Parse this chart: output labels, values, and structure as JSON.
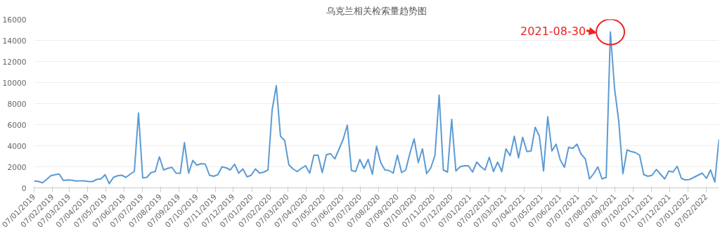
{
  "chart_data": {
    "type": "line",
    "title": "乌克兰相关检索量趋势图",
    "x": [
      "2019-01-07",
      "2019-01-14",
      "2019-01-21",
      "2019-01-28",
      "2019-02-04",
      "2019-02-11",
      "2019-02-18",
      "2019-02-25",
      "2019-03-04",
      "2019-03-11",
      "2019-03-18",
      "2019-03-25",
      "2019-04-01",
      "2019-04-08",
      "2019-04-15",
      "2019-04-22",
      "2019-04-29",
      "2019-05-06",
      "2019-05-13",
      "2019-05-20",
      "2019-05-27",
      "2019-06-03",
      "2019-06-10",
      "2019-06-17",
      "2019-06-24",
      "2019-07-01",
      "2019-07-08",
      "2019-07-15",
      "2019-07-22",
      "2019-07-29",
      "2019-08-05",
      "2019-08-12",
      "2019-08-19",
      "2019-08-26",
      "2019-09-02",
      "2019-09-09",
      "2019-09-16",
      "2019-09-23",
      "2019-09-30",
      "2019-10-07",
      "2019-10-14",
      "2019-10-21",
      "2019-10-28",
      "2019-11-04",
      "2019-11-11",
      "2019-11-18",
      "2019-11-25",
      "2019-12-02",
      "2019-12-09",
      "2019-12-16",
      "2019-12-23",
      "2019-12-30",
      "2020-01-06",
      "2020-01-13",
      "2020-01-20",
      "2020-01-27",
      "2020-02-03",
      "2020-02-10",
      "2020-02-17",
      "2020-02-24",
      "2020-03-02",
      "2020-03-09",
      "2020-03-16",
      "2020-03-23",
      "2020-03-30",
      "2020-04-06",
      "2020-04-13",
      "2020-04-20",
      "2020-04-27",
      "2020-05-04",
      "2020-05-11",
      "2020-05-18",
      "2020-05-25",
      "2020-06-01",
      "2020-06-08",
      "2020-06-15",
      "2020-06-22",
      "2020-06-29",
      "2020-07-06",
      "2020-07-13",
      "2020-07-20",
      "2020-07-27",
      "2020-08-03",
      "2020-08-10",
      "2020-08-17",
      "2020-08-24",
      "2020-08-31",
      "2020-09-07",
      "2020-09-14",
      "2020-09-21",
      "2020-09-28",
      "2020-10-05",
      "2020-10-12",
      "2020-10-19",
      "2020-10-26",
      "2020-11-02",
      "2020-11-09",
      "2020-11-16",
      "2020-11-23",
      "2020-11-30",
      "2020-12-07",
      "2020-12-14",
      "2020-12-21",
      "2020-12-28",
      "2021-01-04",
      "2021-01-11",
      "2021-01-18",
      "2021-01-25",
      "2021-02-01",
      "2021-02-08",
      "2021-02-15",
      "2021-02-22",
      "2021-03-01",
      "2021-03-08",
      "2021-03-15",
      "2021-03-22",
      "2021-03-29",
      "2021-04-05",
      "2021-04-12",
      "2021-04-19",
      "2021-04-26",
      "2021-05-03",
      "2021-05-10",
      "2021-05-17",
      "2021-05-24",
      "2021-05-31",
      "2021-06-07",
      "2021-06-14",
      "2021-06-21",
      "2021-06-28",
      "2021-07-05",
      "2021-07-12",
      "2021-07-19",
      "2021-07-26",
      "2021-08-02",
      "2021-08-09",
      "2021-08-16",
      "2021-08-23",
      "2021-08-30",
      "2021-09-06",
      "2021-09-13",
      "2021-09-20",
      "2021-09-27",
      "2021-10-04",
      "2021-10-11",
      "2021-10-18",
      "2021-10-25",
      "2021-11-01",
      "2021-11-08",
      "2021-11-15",
      "2021-11-22",
      "2021-11-29",
      "2021-12-06",
      "2021-12-13",
      "2021-12-20",
      "2021-12-27",
      "2022-01-03",
      "2022-01-10",
      "2022-01-17",
      "2022-01-24",
      "2022-01-31",
      "2022-02-07",
      "2022-02-14",
      "2022-02-21",
      "2022-02-28"
    ],
    "series": [
      {
        "color": "#5b9bd5",
        "values": [
          650,
          620,
          480,
          800,
          1150,
          1250,
          1320,
          700,
          750,
          730,
          650,
          660,
          660,
          600,
          600,
          800,
          850,
          1250,
          400,
          1000,
          1150,
          1200,
          1000,
          1300,
          1550,
          7100,
          950,
          1000,
          1450,
          1550,
          2950,
          1700,
          1850,
          1950,
          1400,
          1380,
          4300,
          1400,
          2600,
          2150,
          2300,
          2250,
          1200,
          1100,
          1250,
          2000,
          1900,
          1700,
          2250,
          1400,
          1800,
          1050,
          1200,
          1800,
          1400,
          1500,
          1700,
          7400,
          9700,
          4900,
          4500,
          2200,
          1800,
          1550,
          1850,
          2100,
          1400,
          3100,
          3100,
          1450,
          3150,
          3250,
          2750,
          3650,
          4600,
          5950,
          1650,
          1550,
          2700,
          1850,
          2700,
          1300,
          3950,
          2400,
          1700,
          1650,
          1400,
          3100,
          1450,
          1700,
          3300,
          4650,
          2400,
          3700,
          1350,
          1900,
          3100,
          8800,
          1700,
          1500,
          6500,
          1600,
          2000,
          2100,
          2100,
          1500,
          2450,
          2000,
          1700,
          2900,
          1550,
          2450,
          1550,
          3700,
          3050,
          4900,
          2850,
          4800,
          3450,
          3500,
          5750,
          4900,
          1600,
          6750,
          3500,
          4150,
          2650,
          1950,
          3850,
          3750,
          4150,
          3200,
          2750,
          850,
          1350,
          2000,
          850,
          1000,
          14800,
          9450,
          6350,
          1350,
          3600,
          3450,
          3350,
          3100,
          1250,
          1100,
          1200,
          1750,
          1300,
          850,
          1600,
          1500,
          2050,
          900,
          750,
          800,
          1000,
          1200,
          1400,
          900,
          1700,
          550,
          4600
        ]
      }
    ],
    "xlim": [
      "2019-01-07",
      "2022-02-28"
    ],
    "xticks": [
      {
        "value": "2019-01-07",
        "label": "07/01/2019"
      },
      {
        "value": "2019-02-07",
        "label": "07/02/2019"
      },
      {
        "value": "2019-03-07",
        "label": "07/03/2019"
      },
      {
        "value": "2019-04-07",
        "label": "07/04/2019"
      },
      {
        "value": "2019-05-07",
        "label": "07/05/2019"
      },
      {
        "value": "2019-06-07",
        "label": "07/06/2019"
      },
      {
        "value": "2019-07-07",
        "label": "07/07/2019"
      },
      {
        "value": "2019-08-07",
        "label": "07/08/2019"
      },
      {
        "value": "2019-09-07",
        "label": "07/09/2019"
      },
      {
        "value": "2019-10-07",
        "label": "07/10/2019"
      },
      {
        "value": "2019-11-07",
        "label": "07/11/2019"
      },
      {
        "value": "2019-12-07",
        "label": "07/12/2019"
      },
      {
        "value": "2020-01-07",
        "label": "07/01/2020"
      },
      {
        "value": "2020-02-07",
        "label": "07/02/2020"
      },
      {
        "value": "2020-03-07",
        "label": "07/03/2020"
      },
      {
        "value": "2020-04-07",
        "label": "07/04/2020"
      },
      {
        "value": "2020-05-07",
        "label": "07/05/2020"
      },
      {
        "value": "2020-06-07",
        "label": "07/06/2020"
      },
      {
        "value": "2020-07-07",
        "label": "07/07/2020"
      },
      {
        "value": "2020-08-07",
        "label": "07/08/2020"
      },
      {
        "value": "2020-09-07",
        "label": "07/09/2020"
      },
      {
        "value": "2020-10-07",
        "label": "07/10/2020"
      },
      {
        "value": "2020-11-07",
        "label": "07/11/2020"
      },
      {
        "value": "2020-12-07",
        "label": "07/12/2020"
      },
      {
        "value": "2021-01-07",
        "label": "07/01/2021"
      },
      {
        "value": "2021-02-07",
        "label": "07/02/2021"
      },
      {
        "value": "2021-03-07",
        "label": "07/03/2021"
      },
      {
        "value": "2021-04-07",
        "label": "07/04/2021"
      },
      {
        "value": "2021-05-07",
        "label": "07/05/2021"
      },
      {
        "value": "2021-06-07",
        "label": "07/06/2021"
      },
      {
        "value": "2021-07-07",
        "label": "07/07/2021"
      },
      {
        "value": "2021-08-07",
        "label": "07/08/2021"
      },
      {
        "value": "2021-09-07",
        "label": "07/09/2021"
      },
      {
        "value": "2021-10-07",
        "label": "07/10/2021"
      },
      {
        "value": "2021-11-07",
        "label": "07/11/2021"
      },
      {
        "value": "2021-12-07",
        "label": "07/12/2021"
      },
      {
        "value": "2022-01-07",
        "label": "07/01/2022"
      },
      {
        "value": "2022-02-07",
        "label": "07/02/2022"
      }
    ],
    "ylim": [
      0,
      16000
    ],
    "yticks": [
      0,
      2000,
      4000,
      6000,
      8000,
      10000,
      12000,
      14000,
      16000
    ],
    "grid": "y",
    "marker": "none",
    "line_style": "solid",
    "annotations": [
      {
        "text": "2021-08-30",
        "x": "2021-08-30",
        "y": 14800
      }
    ]
  }
}
